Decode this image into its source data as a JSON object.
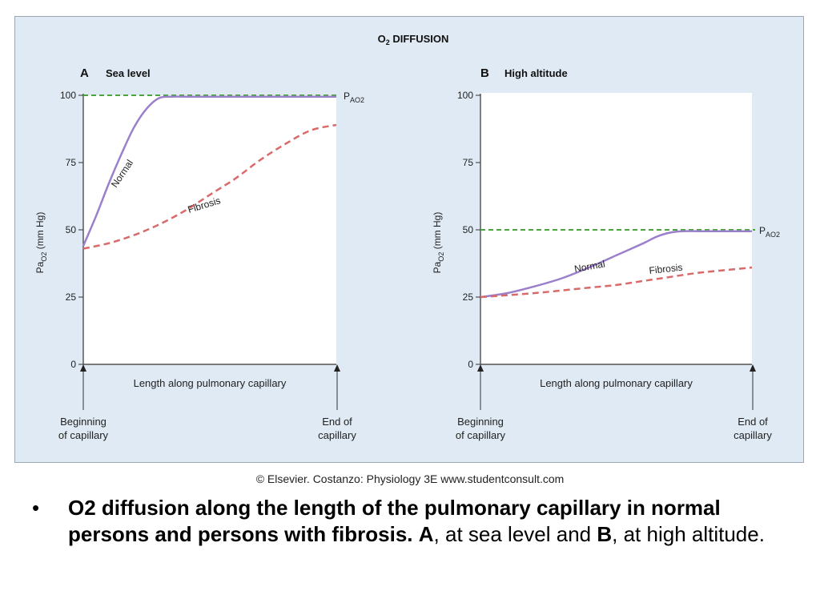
{
  "figure": {
    "background": "#dfeaf4",
    "border": "#9aa8b6",
    "title_main": "O",
    "title_sub": "2",
    "title_rest": " DIFFUSION"
  },
  "legend_colors": {
    "normal": "#9b7fcb",
    "fibrosis": "#d86a6a",
    "alveolar": "#4aa43c"
  },
  "chart_data": [
    {
      "type": "line",
      "panel_letter": "A",
      "title": "Sea level",
      "xlabel": "Length along pulmonary capillary",
      "ylabel_main": "Pa",
      "ylabel_sub": "O2",
      "ylabel_rest": " (mm Hg)",
      "ylim": [
        0,
        100
      ],
      "yticks": [
        "0",
        "25",
        "50",
        "75",
        "100"
      ],
      "x_range": [
        0,
        1
      ],
      "start_label": [
        "Beginning",
        "of capillary"
      ],
      "end_label": [
        "End of",
        "capillary"
      ],
      "alveolar": {
        "label_main": "P",
        "label_sub": "AO2",
        "value": 100
      },
      "series": [
        {
          "name": "Normal",
          "x": [
            0,
            0.05,
            0.1,
            0.15,
            0.2,
            0.25,
            0.3,
            0.35,
            0.4,
            0.5,
            0.6,
            0.7,
            0.8,
            0.9,
            1.0
          ],
          "y": [
            44,
            55,
            67,
            78,
            88,
            95,
            99,
            99.5,
            99.5,
            99.5,
            99.5,
            99.5,
            99.5,
            99.5,
            99.5
          ]
        },
        {
          "name": "Fibrosis",
          "x": [
            0,
            0.1,
            0.2,
            0.3,
            0.4,
            0.5,
            0.6,
            0.7,
            0.8,
            0.9,
            1.0
          ],
          "y": [
            43,
            45,
            48,
            52,
            57,
            63,
            69,
            76,
            82,
            87,
            89
          ]
        }
      ]
    },
    {
      "type": "line",
      "panel_letter": "B",
      "title": "High altitude",
      "xlabel": "Length along pulmonary capillary",
      "ylabel_main": "Pa",
      "ylabel_sub": "O2",
      "ylabel_rest": " (mm Hg)",
      "ylim": [
        0,
        100
      ],
      "yticks": [
        "0",
        "25",
        "50",
        "75",
        "100"
      ],
      "x_range": [
        0,
        1
      ],
      "start_label": [
        "Beginning",
        "of capillary"
      ],
      "end_label": [
        "End of",
        "capillary"
      ],
      "alveolar": {
        "label_main": "P",
        "label_sub": "AO2",
        "value": 50
      },
      "series": [
        {
          "name": "Normal",
          "x": [
            0,
            0.1,
            0.2,
            0.3,
            0.4,
            0.5,
            0.6,
            0.65,
            0.7,
            0.75,
            0.8,
            0.9,
            1.0
          ],
          "y": [
            25,
            26.5,
            29,
            32,
            36,
            40.5,
            45,
            47.5,
            49,
            49.5,
            49.5,
            49.5,
            49.5
          ]
        },
        {
          "name": "Fibrosis",
          "x": [
            0,
            0.2,
            0.4,
            0.5,
            0.6,
            0.7,
            0.8,
            0.9,
            1.0
          ],
          "y": [
            25,
            26.5,
            28.5,
            29.5,
            31,
            32.5,
            34,
            35,
            36
          ]
        }
      ]
    }
  ],
  "credit": "© Elsevier. Costanzo: Physiology 3E www.studentconsult.com",
  "caption": {
    "bullet": "•",
    "bold_part": "O2 diffusion along the length of the pulmonary capillary in normal persons and persons with fibrosis.",
    "a_label": "A",
    "a_text": ", at sea level and",
    "b_label": "B",
    "b_text": ", at high altitude."
  }
}
